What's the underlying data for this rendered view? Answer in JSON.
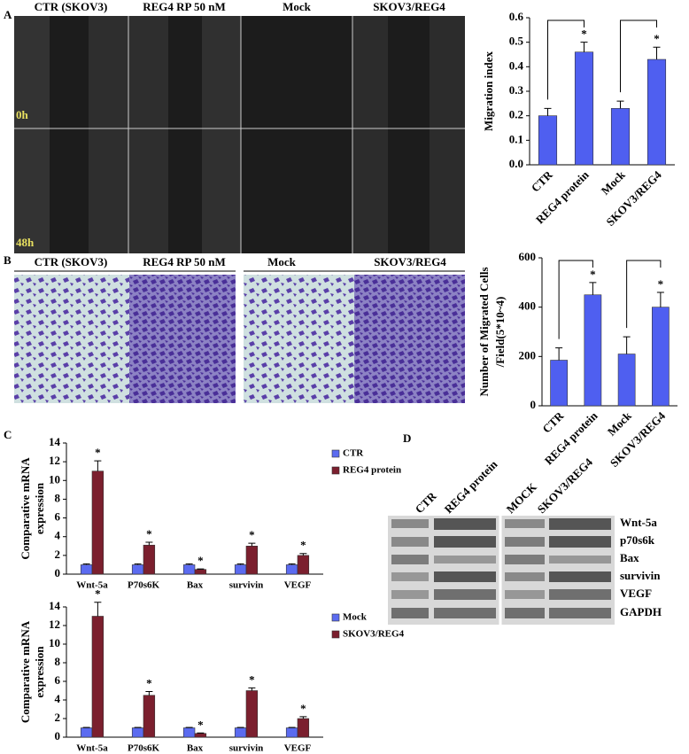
{
  "panels": {
    "A": {
      "label": "A",
      "columns": [
        "CTR (SKOV3)",
        "REG4 RP 50 nM",
        "Mock",
        "SKOV3/REG4"
      ],
      "times": [
        "0h",
        "48h"
      ]
    },
    "B": {
      "label": "B",
      "columns": [
        "CTR (SKOV3)",
        "REG4 RP 50 nM",
        "Mock",
        "SKOV3/REG4"
      ]
    },
    "C": {
      "label": "C"
    },
    "D": {
      "label": "D",
      "columns": [
        "CTR",
        "REG4 protein",
        "MOCK",
        "SKOV3/REG4"
      ],
      "rows": [
        "Wnt-5a",
        "p70s6k",
        "Bax",
        "survivin",
        "VEGF",
        "GAPDH"
      ]
    }
  },
  "chart_data": [
    {
      "type": "bar",
      "ylabel": "Migration index",
      "categories": [
        "CTR",
        "REG4 protein",
        "Mock",
        "SKOV3/REG4"
      ],
      "values": [
        0.2,
        0.46,
        0.23,
        0.43
      ],
      "errors": [
        0.03,
        0.04,
        0.03,
        0.05
      ],
      "significance": [
        null,
        "*",
        null,
        "*"
      ],
      "color": "#4f5ff0",
      "ylim": [
        0,
        0.6
      ],
      "yticks": [
        {
          "value": 0,
          "label": "0.0"
        },
        0.1,
        0.2,
        0.3,
        0.4,
        0.5,
        0.6
      ]
    },
    {
      "type": "bar",
      "ylabel": [
        "Number of Migrated Cells",
        "/Field(5*10~4)"
      ],
      "categories": [
        "CTR",
        "REG4 protein",
        "Mock",
        "SKOV3/REG4"
      ],
      "values": [
        185,
        450,
        210,
        400
      ],
      "errors": [
        50,
        50,
        70,
        60
      ],
      "significance": [
        null,
        "*",
        null,
        "*"
      ],
      "color": "#4f5ff0",
      "ylim": [
        0,
        600
      ],
      "yticks": [
        0,
        200,
        400,
        600
      ]
    },
    {
      "type": "grouped_bar",
      "ylabel": [
        "Comparative mRNA",
        "expression"
      ],
      "categories": [
        "Wnt-5a",
        "P70s6K",
        "Bax",
        "survivin",
        "VEGF"
      ],
      "series": [
        {
          "name": "CTR",
          "color": "#5b6bf0",
          "values": [
            1,
            1,
            1,
            1,
            1
          ],
          "errors": [
            0.1,
            0.1,
            0.1,
            0.1,
            0.1
          ]
        },
        {
          "name": "REG4 protein",
          "color": "#7b1f2e",
          "values": [
            11,
            3.1,
            0.5,
            3,
            2
          ],
          "errors": [
            1.1,
            0.3,
            0.05,
            0.3,
            0.2
          ],
          "significance": [
            "*",
            "*",
            "*",
            "*",
            "*"
          ]
        }
      ],
      "ylim": [
        0,
        14
      ],
      "yticks": [
        0,
        2,
        4,
        6,
        8,
        10,
        12,
        14
      ]
    },
    {
      "type": "grouped_bar",
      "ylabel": [
        "Comparative mRNA",
        "expression"
      ],
      "categories": [
        "Wnt-5a",
        "P70s6K",
        "Bax",
        "survivin",
        "VEGF"
      ],
      "series": [
        {
          "name": "Mock",
          "color": "#5b6bf0",
          "values": [
            1,
            1,
            1,
            1,
            1
          ],
          "errors": [
            0.05,
            0.05,
            0.05,
            0.05,
            0.05
          ]
        },
        {
          "name": "SKOV3/REG4",
          "color": "#7b1f2e",
          "values": [
            13,
            4.5,
            0.4,
            5,
            2
          ],
          "errors": [
            1.5,
            0.4,
            0.05,
            0.3,
            0.2
          ],
          "significance": [
            "*",
            "*",
            "*",
            "*",
            "*"
          ]
        }
      ],
      "ylim": [
        0,
        14
      ],
      "yticks": [
        0,
        2,
        4,
        6,
        8,
        10,
        12,
        14
      ]
    }
  ]
}
